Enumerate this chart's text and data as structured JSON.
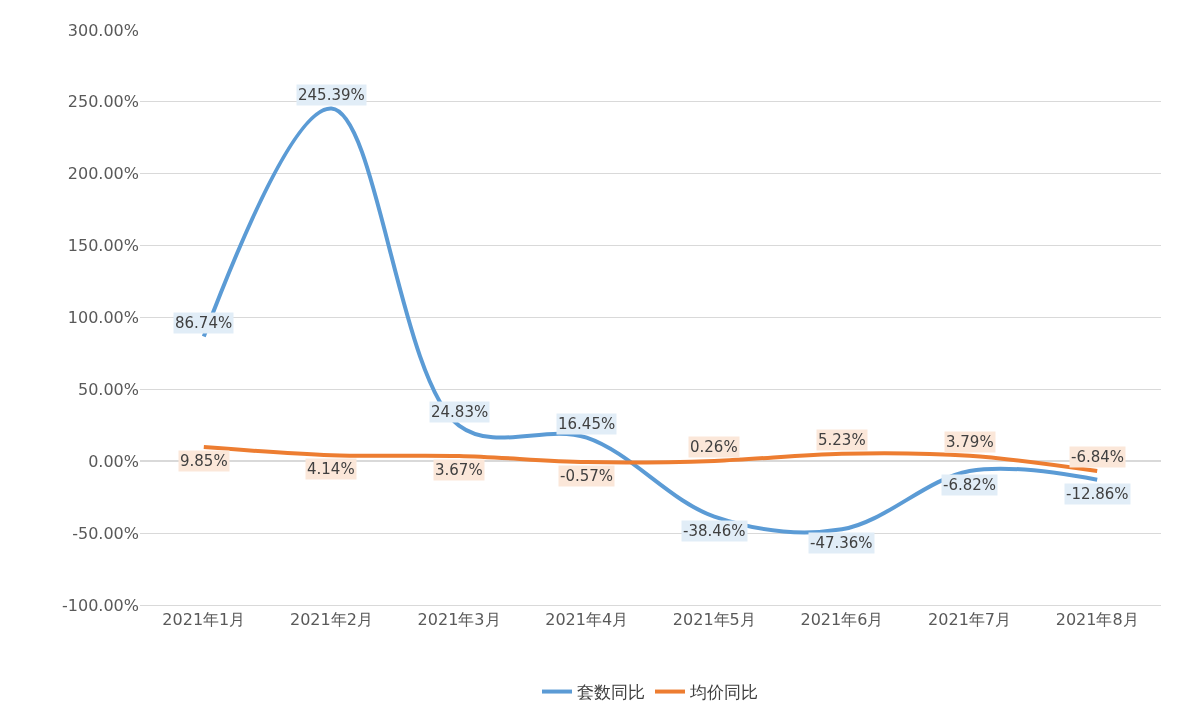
{
  "chart_data": {
    "type": "line",
    "categories": [
      "2021年1月",
      "2021年2月",
      "2021年3月",
      "2021年4月",
      "2021年5月",
      "2021年6月",
      "2021年7月",
      "2021年8月"
    ],
    "series": [
      {
        "name": "套数同比",
        "color": "#5b9bd5",
        "values": [
          86.74,
          245.39,
          24.83,
          16.45,
          -38.46,
          -47.36,
          -6.82,
          -12.86
        ],
        "value_labels": [
          "86.74%",
          "245.39%",
          "24.83%",
          "16.45%",
          "-38.46%",
          "-47.36%",
          "-6.82%",
          "-12.86%"
        ]
      },
      {
        "name": "均价同比",
        "color": "#ed7d31",
        "values": [
          9.85,
          4.14,
          3.67,
          -0.57,
          0.26,
          5.23,
          3.79,
          -6.84
        ],
        "value_labels": [
          "9.85%",
          "4.14%",
          "3.67%",
          "-0.57%",
          "0.26%",
          "5.23%",
          "3.79%",
          "-6.84%"
        ]
      }
    ],
    "ylim": [
      -100,
      300
    ],
    "yticks": [
      {
        "value": -100,
        "label": "-100.00%"
      },
      {
        "value": -50,
        "label": "-50.00%"
      },
      {
        "value": 0,
        "label": "0.00%"
      },
      {
        "value": 50,
        "label": "50.00%"
      },
      {
        "value": 100,
        "label": "100.00%"
      },
      {
        "value": 150,
        "label": "150.00%"
      },
      {
        "value": 200,
        "label": "200.00%"
      },
      {
        "value": 250,
        "label": "250.00%"
      },
      {
        "value": 300,
        "label": "300.00%"
      }
    ],
    "grid": "y",
    "legend": "bottom",
    "marker": "none",
    "line_style": "solid"
  }
}
